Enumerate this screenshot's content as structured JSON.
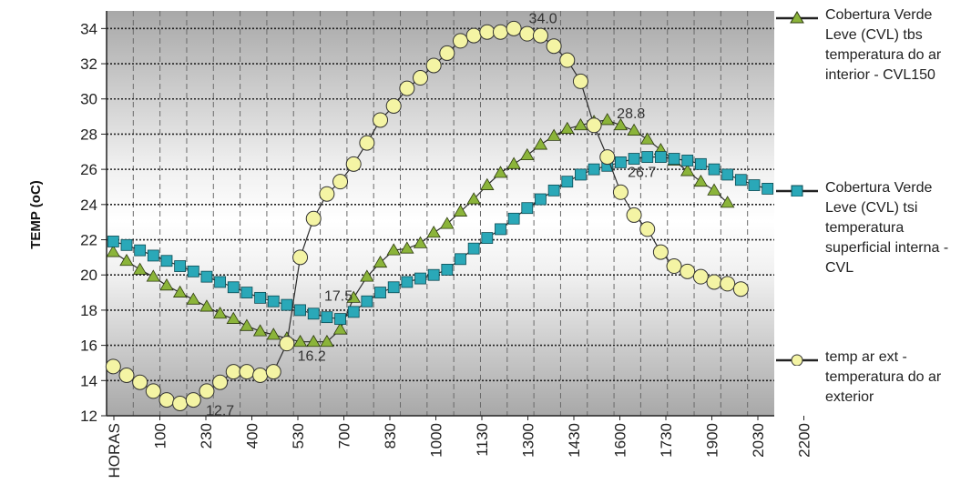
{
  "chart_data": {
    "type": "line",
    "ylabel": "TEMP (oC)",
    "xlabel": "",
    "ylim": [
      12,
      35
    ],
    "yticks": [
      12,
      14,
      16,
      18,
      20,
      22,
      24,
      26,
      28,
      30,
      32,
      34
    ],
    "x_tick_labels": [
      "HORAS",
      "100",
      "230",
      "400",
      "530",
      "700",
      "830",
      "1000",
      "1130",
      "1300",
      "1430",
      "1600",
      "1730",
      "1900",
      "2030",
      "2200"
    ],
    "grid": true,
    "legend_position": "right",
    "series": [
      {
        "name": "Cobertura Verde Leve (CVL) tbs temperatura do ar interior - CVL150",
        "marker": "triangle",
        "color": "#8bb43a",
        "values": [
          21.3,
          20.8,
          20.3,
          19.9,
          19.4,
          19.0,
          18.6,
          18.2,
          17.8,
          17.5,
          17.1,
          16.8,
          16.6,
          16.4,
          16.2,
          16.2,
          16.2,
          16.9,
          18.7,
          19.9,
          20.7,
          21.4,
          21.5,
          21.8,
          22.4,
          22.9,
          23.6,
          24.3,
          25.1,
          25.8,
          26.3,
          26.8,
          27.4,
          27.9,
          28.3,
          28.5,
          28.7,
          28.8,
          28.5,
          28.2,
          27.7,
          27.1,
          26.5,
          25.9,
          25.3,
          24.8,
          24.1
        ]
      },
      {
        "name": "Cobertura Verde Leve (CVL) tsi temperatura superficial interna - CVL",
        "marker": "square",
        "color": "#2aa8b8",
        "values": [
          21.9,
          21.7,
          21.4,
          21.1,
          20.8,
          20.5,
          20.2,
          19.9,
          19.6,
          19.3,
          19.0,
          18.7,
          18.5,
          18.3,
          18.0,
          17.8,
          17.6,
          17.5,
          17.9,
          18.5,
          19.0,
          19.3,
          19.6,
          19.8,
          20.0,
          20.3,
          20.9,
          21.5,
          22.1,
          22.6,
          23.2,
          23.8,
          24.3,
          24.8,
          25.3,
          25.7,
          26.0,
          26.2,
          26.4,
          26.6,
          26.7,
          26.7,
          26.6,
          26.5,
          26.3,
          26.0,
          25.7,
          25.4,
          25.1,
          24.9
        ]
      },
      {
        "name": "temp ar ext - temperatura do ar exterior",
        "marker": "circle",
        "color": "#f4f4a4",
        "values": [
          14.8,
          14.3,
          13.9,
          13.4,
          12.9,
          12.7,
          12.9,
          13.4,
          13.9,
          14.5,
          14.5,
          14.3,
          14.5,
          16.1,
          21.0,
          23.2,
          24.6,
          25.3,
          26.3,
          27.5,
          28.8,
          29.6,
          30.6,
          31.2,
          31.9,
          32.6,
          33.3,
          33.6,
          33.8,
          33.8,
          34.0,
          33.7,
          33.6,
          33.0,
          32.2,
          31.0,
          28.5,
          26.7,
          24.7,
          23.4,
          22.6,
          21.3,
          20.5,
          20.2,
          19.9,
          19.6,
          19.5,
          19.2
        ]
      }
    ],
    "annotations": [
      {
        "text": "34.0",
        "series": 2,
        "index": 30
      },
      {
        "text": "28.8",
        "series": 0,
        "index": 37
      },
      {
        "text": "26.7",
        "series": 1,
        "index": 40
      },
      {
        "text": "17.5",
        "series": 1,
        "index": 17
      },
      {
        "text": "16.2",
        "series": 0,
        "index": 15
      },
      {
        "text": "12.7",
        "series": 2,
        "index": 5
      }
    ]
  },
  "legend": {
    "items": [
      {
        "text": "Cobertura Verde Leve (CVL) tbs temperatura do ar interior - CVL150"
      },
      {
        "text": "Cobertura Verde Leve (CVL) tsi temperatura superficial interna - CVL"
      },
      {
        "text": "temp ar ext - temperatura do ar exterior"
      }
    ]
  }
}
